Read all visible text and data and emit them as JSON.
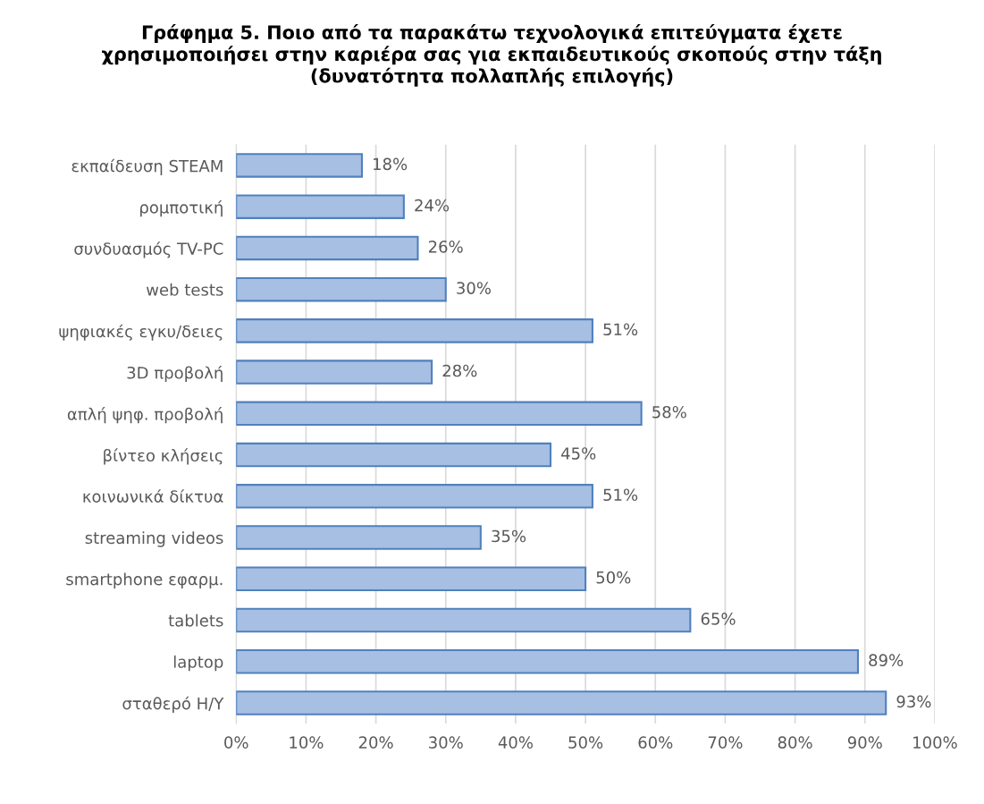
{
  "chart_data": {
    "type": "bar",
    "orientation": "horizontal",
    "title": "Γράφημα 5. Ποιο από τα παρακάτω τεχνολογικά επιτεύγματα έχετε\nχρησιμοποιήσει στην καριέρα σας για εκπαιδευτικούς σκοπούς στην τάξη\n(δυνατότητα πολλαπλής επιλογής)",
    "categories": [
      "εκπαίδευση STEAM",
      "ρομποτική",
      "συνδυασμός TV-PC",
      "web tests",
      "ψηφιακές εγκυ/δειες",
      "3D προβολή",
      "απλή ψηφ. προβολή",
      "βίντεο κλήσεις",
      "κοινωνικά δίκτυα",
      "streaming videos",
      "smartphone εφαρμ.",
      "tablets",
      "laptop",
      "σταθερό Η/Υ"
    ],
    "values": [
      18,
      24,
      26,
      30,
      51,
      28,
      58,
      45,
      51,
      35,
      50,
      65,
      89,
      93
    ],
    "value_labels": [
      "18%",
      "24%",
      "26%",
      "30%",
      "51%",
      "28%",
      "58%",
      "45%",
      "51%",
      "35%",
      "50%",
      "65%",
      "89%",
      "93%"
    ],
    "color": "#a7bfe3",
    "xlim": [
      0,
      100
    ],
    "xticks": [
      {
        "value": 0,
        "label": "0%"
      },
      {
        "value": 10,
        "label": "10%"
      },
      {
        "value": 20,
        "label": "20%"
      },
      {
        "value": 30,
        "label": "30%"
      },
      {
        "value": 40,
        "label": "40%"
      },
      {
        "value": 50,
        "label": "50%"
      },
      {
        "value": 60,
        "label": "60%"
      },
      {
        "value": 70,
        "label": "70%"
      },
      {
        "value": 80,
        "label": "80%"
      },
      {
        "value": 90,
        "label": "90%"
      },
      {
        "value": 100,
        "label": "100%"
      }
    ],
    "grid": "x"
  }
}
